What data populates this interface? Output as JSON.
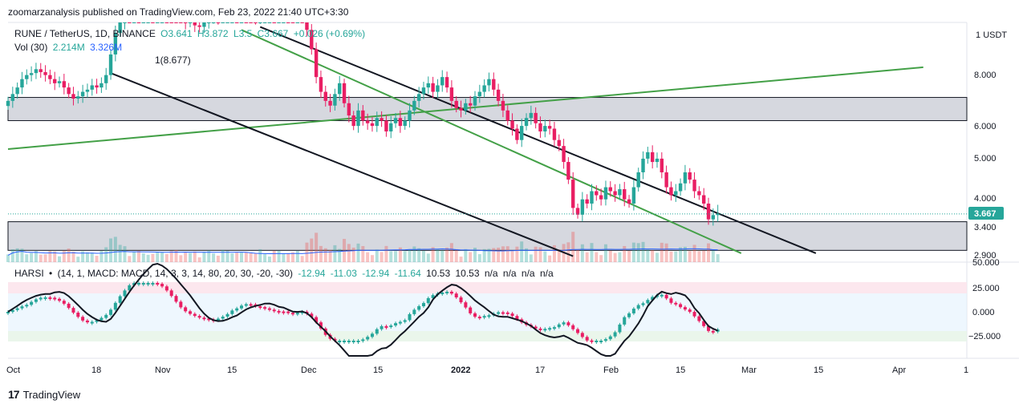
{
  "header": {
    "published": "zoomarzanalysis published on TradingView.com, Feb 23, 2022 21:40 UTC+3:30"
  },
  "legend": {
    "symbol": "RUNE / TetherUS, 1D, BINANCE",
    "open": "O3.641",
    "high": "H3.872",
    "low": "L3.5",
    "close": "C3.667",
    "change": "+0.026 (+0.69%)",
    "vol_label": "Vol (30)",
    "vol_value": "2.214M",
    "vol_ma": "3.326M"
  },
  "annotation": "1(8.677)",
  "price_axis": {
    "currency": "USDT",
    "ticks": [
      "8.000",
      "6.000",
      "5.000",
      "4.000",
      "3.400",
      "2.900"
    ],
    "last_price": "3.667",
    "last_price_color": "#26a69a"
  },
  "harsi": {
    "label": "HARSI",
    "params": "(14, 1, MACD: MACD, 14, 3, 3, 14, 80, 20, 30, -20, -30)",
    "values": [
      "-12.94",
      "-11.03",
      "-12.94",
      "-11.64",
      "10.53",
      "10.53",
      "n/a",
      "n/a",
      "n/a",
      "n/a"
    ],
    "ticks": [
      "50.000",
      "25.000",
      "0.000",
      "−25.000"
    ]
  },
  "time_axis": {
    "labels": [
      "Oct",
      "18",
      "Nov",
      "15",
      "Dec",
      "15",
      "2022",
      "17",
      "Feb",
      "15",
      "Mar",
      "15",
      "Apr",
      "1"
    ]
  },
  "footer": {
    "brand": "TradingView"
  },
  "colors": {
    "up": "#26a69a",
    "down": "#ef5350",
    "candle_up": "#26a69a",
    "candle_down": "#e91e63",
    "trend_green": "#43a047",
    "channel_black": "#131722",
    "zone_fill": "#d1d4dc",
    "vol_ma": "#2962ff"
  },
  "chart_data": {
    "type": "candlestick",
    "symbol": "RUNE / TetherUS",
    "timeframe": "1D",
    "exchange": "BINANCE",
    "price_scale": "log",
    "price_range": [
      2.75,
      11.5
    ],
    "start_date": "2021-10-01",
    "last_ohlc": {
      "open": 3.641,
      "high": 3.872,
      "low": 3.5,
      "close": 3.667
    },
    "zones": [
      {
        "low": 6.4,
        "high": 7.35
      },
      {
        "low": 2.95,
        "high": 3.5
      }
    ],
    "lines": [
      {
        "color": "green",
        "points": [
          [
            "2021-10-01",
            5.4
          ],
          [
            "2022-04-15",
            8.8
          ]
        ]
      },
      {
        "color": "green",
        "points": [
          [
            "2021-11-20",
            11.0
          ],
          [
            "2022-03-07",
            2.9
          ]
        ]
      },
      {
        "color": "black",
        "points": [
          [
            "2021-11-24",
            11.2
          ],
          [
            "2022-03-23",
            2.9
          ]
        ]
      },
      {
        "color": "black",
        "points": [
          [
            "2021-10-23",
            8.5
          ],
          [
            "2022-01-30",
            2.85
          ]
        ]
      }
    ],
    "closes": [
      7.2,
      7.5,
      7.8,
      8.2,
      8.4,
      8.5,
      8.7,
      8.55,
      8.4,
      8.2,
      8.0,
      8.1,
      7.8,
      7.5,
      7.3,
      7.4,
      7.6,
      7.7,
      7.9,
      7.8,
      8.0,
      8.4,
      9.5,
      10.8,
      11.5,
      12.2,
      12.0,
      12.3,
      12.0,
      12.2,
      12.5,
      12.4,
      12.6,
      13.0,
      12.7,
      12.4,
      12.0,
      11.8,
      11.5,
      11.6,
      11.3,
      11.2,
      11.5,
      11.8,
      12.0,
      11.8,
      12.2,
      12.5,
      12.8,
      12.4,
      12.6,
      12.4,
      12.0,
      11.8,
      12.2,
      12.3,
      12.5,
      12.1,
      12.4,
      12.6,
      12.2,
      12.0,
      12.3,
      12.2,
      11.0,
      9.8,
      8.3,
      7.6,
      7.2,
      7.0,
      7.5,
      8.0,
      7.1,
      6.6,
      6.2,
      6.8,
      6.4,
      6.3,
      6.2,
      6.5,
      6.4,
      6.0,
      6.3,
      6.5,
      6.2,
      6.4,
      6.8,
      7.2,
      7.5,
      7.8,
      8.0,
      7.6,
      7.9,
      8.3,
      7.8,
      7.2,
      6.9,
      6.8,
      7.1,
      7.0,
      7.4,
      7.6,
      7.9,
      8.2,
      7.7,
      7.2,
      6.8,
      6.4,
      6.1,
      5.7,
      6.2,
      6.5,
      6.7,
      6.3,
      6.0,
      6.2,
      6.1,
      5.7,
      5.5,
      5.0,
      4.5,
      3.8,
      3.65,
      4.0,
      3.9,
      4.2,
      4.1,
      4.0,
      4.3,
      4.2,
      4.1,
      4.25,
      4.0,
      3.9,
      4.3,
      4.7,
      5.1,
      5.3,
      5.0,
      5.1,
      4.7,
      4.3,
      4.1,
      4.2,
      4.4,
      4.7,
      4.5,
      4.2,
      4.1,
      3.9,
      3.55,
      3.641,
      3.667
    ]
  }
}
